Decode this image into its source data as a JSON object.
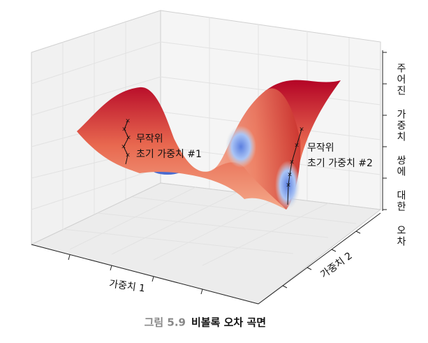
{
  "chart_data": {
    "type": "surface",
    "zlabel": "주어진 가중치 쌍에 대한 오차",
    "xlabel": "가중치 1",
    "ylabel": "가중치 2",
    "annotations": [
      {
        "lines": [
          "무작위",
          "초기 가중치 #1"
        ]
      },
      {
        "lines": [
          "무작위",
          "초기 가중치 #2"
        ]
      }
    ]
  },
  "caption": {
    "number": "그림 5.9",
    "text": "비볼록 오차 곡면"
  }
}
